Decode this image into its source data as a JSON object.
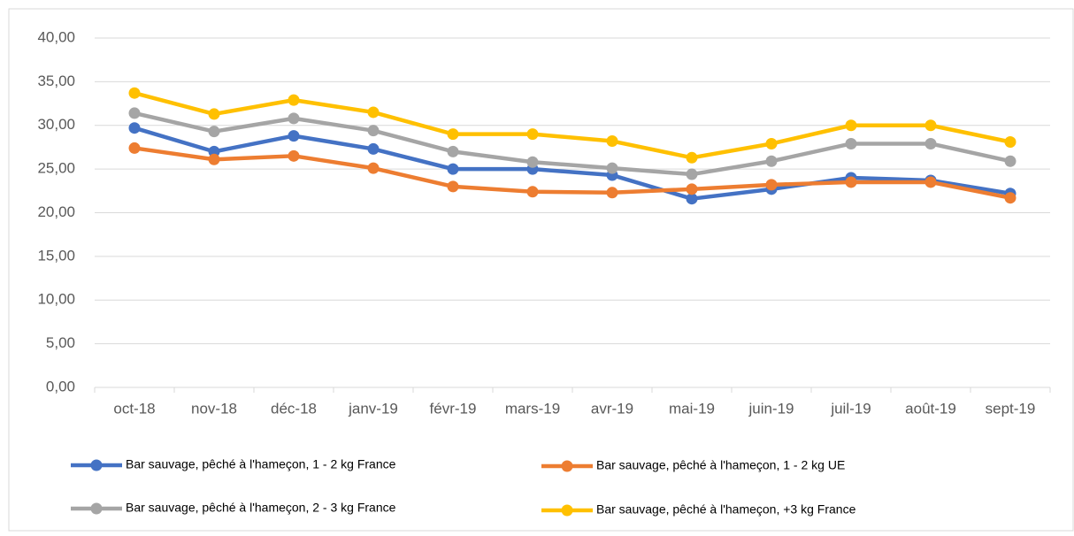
{
  "chart_data": {
    "type": "line",
    "categories": [
      "oct-18",
      "nov-18",
      "déc-18",
      "janv-19",
      "févr-19",
      "mars-19",
      "avr-19",
      "mai-19",
      "juin-19",
      "juil-19",
      "août-19",
      "sept-19"
    ],
    "series": [
      {
        "name": "Bar sauvage, pêché à l'hameçon, 1 - 2 kg France",
        "color": "#4472c4",
        "values": [
          29.7,
          27.0,
          28.8,
          27.3,
          25.0,
          25.0,
          24.3,
          21.6,
          22.7,
          24.0,
          23.7,
          22.2
        ]
      },
      {
        "name": "Bar sauvage, pêché à l'hameçon, 1 - 2 kg UE",
        "color": "#ed7d31",
        "values": [
          27.4,
          26.1,
          26.5,
          25.1,
          23.0,
          22.4,
          22.3,
          22.7,
          23.2,
          23.5,
          23.5,
          21.7
        ]
      },
      {
        "name": "Bar sauvage, pêché à l'hameçon, 2 - 3 kg France",
        "color": "#a5a5a5",
        "values": [
          31.4,
          29.3,
          30.8,
          29.4,
          27.0,
          25.8,
          25.1,
          24.4,
          25.9,
          27.9,
          27.9,
          25.9
        ]
      },
      {
        "name": "Bar sauvage, pêché à l'hameçon, +3 kg France",
        "color": "#ffc000",
        "values": [
          33.7,
          31.3,
          32.9,
          31.5,
          29.0,
          29.0,
          28.2,
          26.3,
          27.9,
          30.0,
          30.0,
          28.1
        ]
      }
    ],
    "ylim": [
      0,
      40
    ],
    "yticks": [
      {
        "value": 0,
        "label": "0,00"
      },
      {
        "value": 5,
        "label": "5,00"
      },
      {
        "value": 10,
        "label": "10,00"
      },
      {
        "value": 15,
        "label": "15,00"
      },
      {
        "value": 20,
        "label": "20,00"
      },
      {
        "value": 25,
        "label": "25,00"
      },
      {
        "value": 30,
        "label": "30,00"
      },
      {
        "value": 35,
        "label": "35,00"
      },
      {
        "value": 40,
        "label": "40,00"
      }
    ],
    "grid": true
  }
}
